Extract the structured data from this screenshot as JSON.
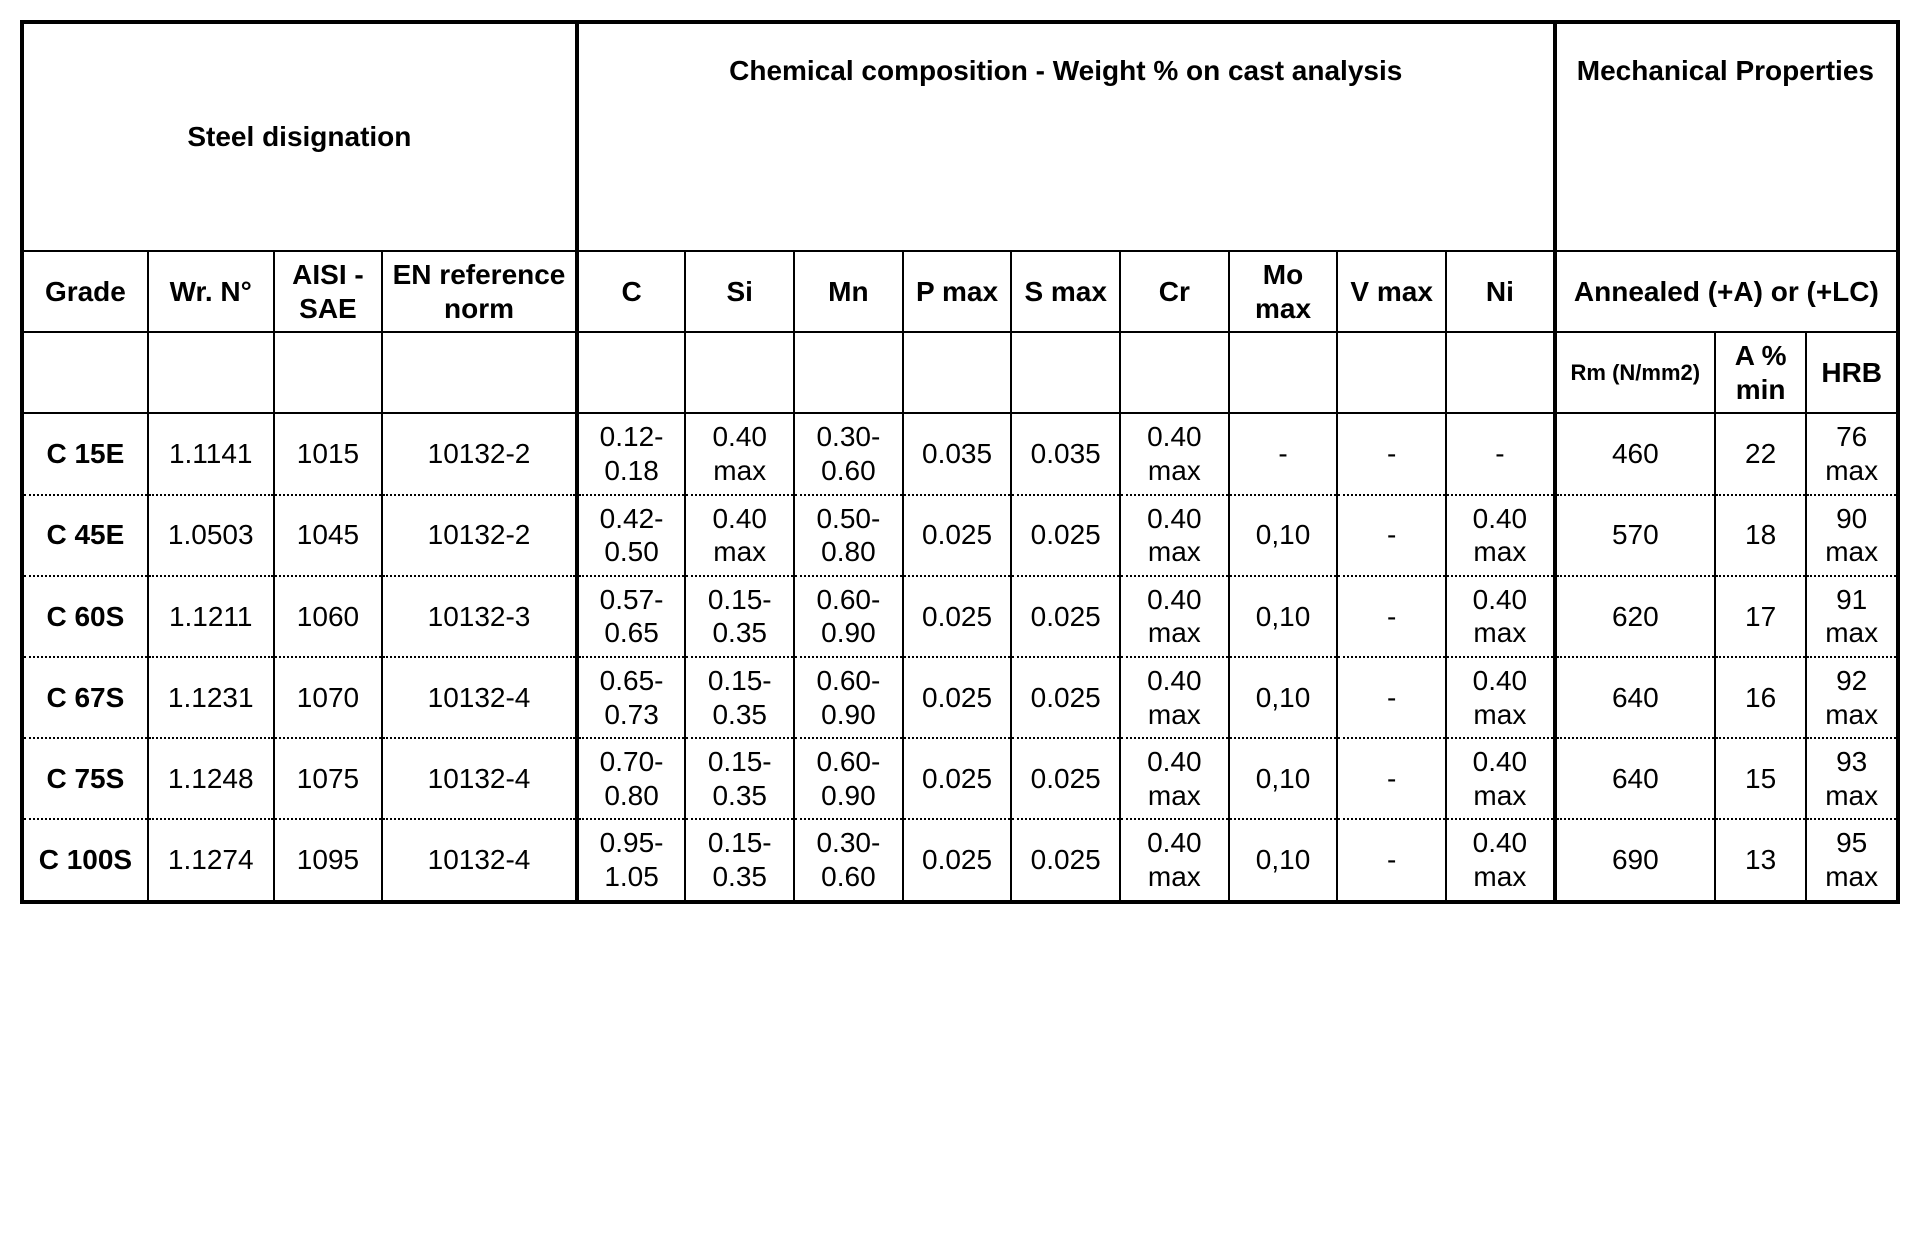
{
  "table": {
    "background_color": "#ffffff",
    "text_color": "#000000",
    "border_color": "#000000",
    "font_family": "Arial",
    "header_fontsize": 28,
    "cell_fontsize": 28,
    "group_headers": {
      "designation": "Steel disignation",
      "chemical": "Chemical composition - Weight % on cast analysis",
      "mechanical": "Mechanical Properties"
    },
    "sub_headers": {
      "grade": "Grade",
      "wr": "Wr. N°",
      "aisi": "AISI - SAE",
      "en": "EN reference norm",
      "c": "C",
      "si": "Si",
      "mn": "Mn",
      "p": "P max",
      "s": "S max",
      "cr": "Cr",
      "mo": "Mo max",
      "v": "V max",
      "ni": "Ni",
      "annealed": "Annealed (+A) or (+LC)",
      "rm": "Rm (N/mm2)",
      "a": "A % min",
      "hrb": "HRB"
    },
    "rows": [
      {
        "grade": "C 15E",
        "wr": "1.1141",
        "aisi": "1015",
        "en": "10132-2",
        "c": "0.12-0.18",
        "si": "0.40 max",
        "mn": "0.30-0.60",
        "p": "0.035",
        "s": "0.035",
        "cr": "0.40 max",
        "mo": "-",
        "v": "-",
        "ni": "-",
        "rm": "460",
        "a": "22",
        "hrb": "76 max"
      },
      {
        "grade": "C 45E",
        "wr": "1.0503",
        "aisi": "1045",
        "en": "10132-2",
        "c": "0.42-0.50",
        "si": "0.40 max",
        "mn": "0.50-0.80",
        "p": "0.025",
        "s": "0.025",
        "cr": "0.40 max",
        "mo": "0,10",
        "v": "-",
        "ni": "0.40 max",
        "rm": "570",
        "a": "18",
        "hrb": "90 max"
      },
      {
        "grade": "C 60S",
        "wr": "1.1211",
        "aisi": "1060",
        "en": "10132-3",
        "c": "0.57-0.65",
        "si": "0.15-0.35",
        "mn": "0.60-0.90",
        "p": "0.025",
        "s": "0.025",
        "cr": "0.40 max",
        "mo": "0,10",
        "v": "-",
        "ni": "0.40 max",
        "rm": "620",
        "a": "17",
        "hrb": "91 max"
      },
      {
        "grade": "C 67S",
        "wr": "1.1231",
        "aisi": "1070",
        "en": "10132-4",
        "c": "0.65-0.73",
        "si": "0.15-0.35",
        "mn": "0.60-0.90",
        "p": "0.025",
        "s": "0.025",
        "cr": "0.40 max",
        "mo": "0,10",
        "v": "-",
        "ni": "0.40 max",
        "rm": "640",
        "a": "16",
        "hrb": "92 max"
      },
      {
        "grade": "C 75S",
        "wr": "1.1248",
        "aisi": "1075",
        "en": "10132-4",
        "c": "0.70-0.80",
        "si": "0.15-0.35",
        "mn": "0.60-0.90",
        "p": "0.025",
        "s": "0.025",
        "cr": "0.40 max",
        "mo": "0,10",
        "v": "-",
        "ni": "0.40 max",
        "rm": "640",
        "a": "15",
        "hrb": "93 max"
      },
      {
        "grade": "C 100S",
        "wr": "1.1274",
        "aisi": "1095",
        "en": "10132-4",
        "c": "0.95-1.05",
        "si": "0.15-0.35",
        "mn": "0.30-0.60",
        "p": "0.025",
        "s": "0.025",
        "cr": "0.40 max",
        "mo": "0,10",
        "v": "-",
        "ni": "0.40 max",
        "rm": "690",
        "a": "13",
        "hrb": "95 max"
      }
    ]
  }
}
